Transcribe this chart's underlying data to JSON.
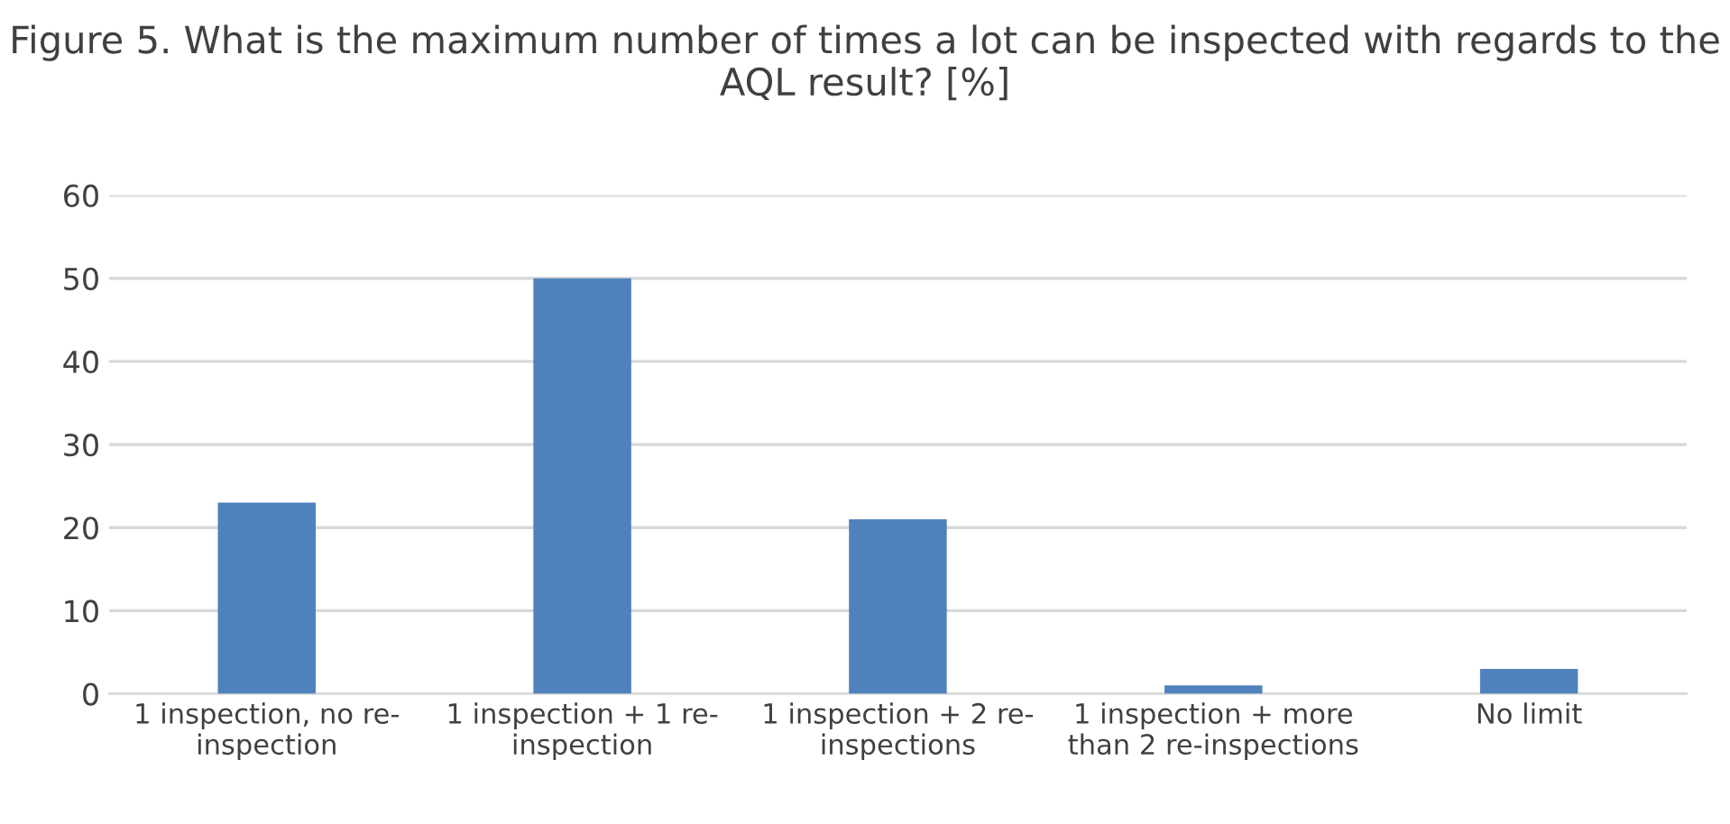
{
  "chart_data": {
    "type": "bar",
    "title": "Figure 5. What is the maximum number of times a lot can be inspected with regards to the AQL result? [%]",
    "categories": [
      "1 inspection, no re-inspection",
      "1 inspection + 1 re-inspection",
      "1 inspection + 2 re-inspections",
      "1 inspection + more than 2 re-inspections",
      "No limit"
    ],
    "values": [
      23,
      50,
      21,
      1,
      3
    ],
    "color": "#4f81bd",
    "ylim": [
      0,
      60
    ],
    "yticks": [
      0,
      10,
      20,
      30,
      40,
      50,
      60
    ],
    "grid": "y"
  }
}
